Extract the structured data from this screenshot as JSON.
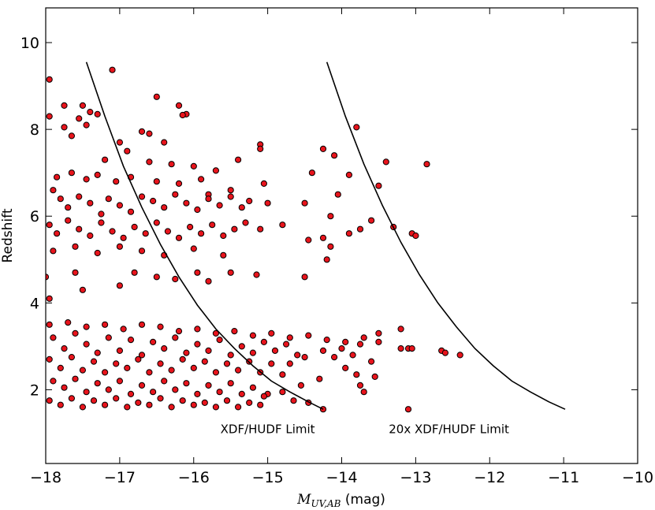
{
  "chart_data": {
    "type": "scatter",
    "xlabel_main": "M",
    "xlabel_sub": "UV,AB",
    "xlabel_unit": " (mag)",
    "ylabel": "Redshift",
    "xlim": [
      -18,
      -10
    ],
    "ylim": [
      0.3,
      10.8
    ],
    "xticks": [
      -18,
      -17,
      -16,
      -15,
      -14,
      -13,
      -12,
      -11,
      -10
    ],
    "xtick_labels": [
      "−18",
      "−17",
      "−16",
      "−15",
      "−14",
      "−13",
      "−12",
      "−11",
      "−10"
    ],
    "yticks": [
      2,
      4,
      6,
      8,
      10
    ],
    "ytick_labels": [
      "2",
      "4",
      "6",
      "8",
      "10"
    ],
    "grid": false,
    "marker_color": "#e8141c",
    "marker_edge": "#000000",
    "curves": [
      {
        "label": "XDF/HUDF Limit",
        "label_pos": [
          -15.0,
          1.0
        ],
        "points": [
          [
            -17.45,
            9.55
          ],
          [
            -17.2,
            8.3
          ],
          [
            -16.95,
            7.15
          ],
          [
            -16.7,
            6.2
          ],
          [
            -16.45,
            5.35
          ],
          [
            -16.2,
            4.6
          ],
          [
            -15.95,
            3.95
          ],
          [
            -15.7,
            3.4
          ],
          [
            -15.45,
            2.95
          ],
          [
            -15.2,
            2.55
          ],
          [
            -14.95,
            2.2
          ],
          [
            -14.7,
            1.95
          ],
          [
            -14.45,
            1.72
          ],
          [
            -14.25,
            1.55
          ]
        ]
      },
      {
        "label": "20x XDF/HUDF Limit",
        "label_pos": [
          -12.55,
          1.0
        ],
        "points": [
          [
            -14.2,
            9.55
          ],
          [
            -13.95,
            8.3
          ],
          [
            -13.7,
            7.2
          ],
          [
            -13.45,
            6.25
          ],
          [
            -13.2,
            5.4
          ],
          [
            -12.95,
            4.65
          ],
          [
            -12.7,
            4.0
          ],
          [
            -12.45,
            3.45
          ],
          [
            -12.2,
            2.95
          ],
          [
            -11.95,
            2.55
          ],
          [
            -11.7,
            2.2
          ],
          [
            -11.45,
            1.95
          ],
          [
            -11.2,
            1.72
          ],
          [
            -10.98,
            1.55
          ]
        ]
      }
    ],
    "points": [
      [
        -17.95,
        9.15
      ],
      [
        -17.1,
        9.37
      ],
      [
        -16.5,
        8.75
      ],
      [
        -16.2,
        8.55
      ],
      [
        -16.1,
        8.35
      ],
      [
        -16.15,
        8.33
      ],
      [
        -17.95,
        8.3
      ],
      [
        -17.75,
        8.55
      ],
      [
        -17.5,
        8.55
      ],
      [
        -17.4,
        8.4
      ],
      [
        -17.3,
        8.35
      ],
      [
        -17.55,
        8.25
      ],
      [
        -17.75,
        8.05
      ],
      [
        -17.65,
        7.85
      ],
      [
        -17.45,
        8.1
      ],
      [
        -17.0,
        7.7
      ],
      [
        -16.7,
        7.95
      ],
      [
        -16.6,
        7.9
      ],
      [
        -16.4,
        7.7
      ],
      [
        -15.1,
        7.65
      ],
      [
        -15.1,
        7.55
      ],
      [
        -14.25,
        7.55
      ],
      [
        -14.1,
        7.4
      ],
      [
        -13.8,
        8.05
      ],
      [
        -13.4,
        7.25
      ],
      [
        -12.85,
        7.2
      ],
      [
        -17.2,
        7.3
      ],
      [
        -16.9,
        7.5
      ],
      [
        -16.6,
        7.25
      ],
      [
        -16.3,
        7.2
      ],
      [
        -16.0,
        7.15
      ],
      [
        -15.7,
        7.05
      ],
      [
        -15.4,
        7.3
      ],
      [
        -14.4,
        7.0
      ],
      [
        -13.9,
        6.95
      ],
      [
        -13.5,
        6.7
      ],
      [
        -14.05,
        6.5
      ],
      [
        -14.5,
        6.3
      ],
      [
        -15.0,
        6.3
      ],
      [
        -15.05,
        6.75
      ],
      [
        -15.5,
        6.6
      ],
      [
        -15.8,
        6.5
      ],
      [
        -14.15,
        6.0
      ],
      [
        -13.6,
        5.9
      ],
      [
        -13.3,
        5.75
      ],
      [
        -13.75,
        5.7
      ],
      [
        -13.9,
        5.6
      ],
      [
        -13.05,
        5.6
      ],
      [
        -13.0,
        5.55
      ],
      [
        -14.25,
        5.5
      ],
      [
        -14.45,
        5.45
      ],
      [
        -15.1,
        5.7
      ],
      [
        -14.8,
        5.8
      ],
      [
        -14.2,
        5.0
      ],
      [
        -14.15,
        5.3
      ],
      [
        -15.15,
        4.65
      ],
      [
        -14.5,
        4.6
      ],
      [
        -15.5,
        4.7
      ],
      [
        -15.8,
        4.5
      ],
      [
        -15.95,
        4.7
      ],
      [
        -16.25,
        4.55
      ],
      [
        -16.5,
        4.6
      ],
      [
        -17.0,
        4.4
      ],
      [
        -17.5,
        4.3
      ],
      [
        -17.95,
        4.1
      ],
      [
        -18.0,
        4.6
      ],
      [
        -17.6,
        4.7
      ],
      [
        -16.8,
        4.7
      ],
      [
        -17.9,
        6.6
      ],
      [
        -17.8,
        6.4
      ],
      [
        -17.7,
        6.2
      ],
      [
        -17.55,
        6.45
      ],
      [
        -17.4,
        6.3
      ],
      [
        -17.25,
        6.05
      ],
      [
        -17.15,
        6.4
      ],
      [
        -17.0,
        6.25
      ],
      [
        -16.85,
        6.1
      ],
      [
        -16.7,
        6.45
      ],
      [
        -16.55,
        6.35
      ],
      [
        -16.4,
        6.2
      ],
      [
        -16.25,
        6.5
      ],
      [
        -16.1,
        6.3
      ],
      [
        -15.95,
        6.15
      ],
      [
        -15.8,
        6.4
      ],
      [
        -15.65,
        6.25
      ],
      [
        -15.5,
        6.45
      ],
      [
        -15.35,
        6.2
      ],
      [
        -15.25,
        6.35
      ],
      [
        -17.95,
        5.8
      ],
      [
        -17.85,
        5.6
      ],
      [
        -17.7,
        5.9
      ],
      [
        -17.55,
        5.7
      ],
      [
        -17.4,
        5.55
      ],
      [
        -17.25,
        5.85
      ],
      [
        -17.1,
        5.65
      ],
      [
        -16.95,
        5.5
      ],
      [
        -16.8,
        5.75
      ],
      [
        -16.65,
        5.6
      ],
      [
        -16.5,
        5.85
      ],
      [
        -16.35,
        5.65
      ],
      [
        -16.2,
        5.5
      ],
      [
        -16.05,
        5.75
      ],
      [
        -15.9,
        5.6
      ],
      [
        -15.75,
        5.8
      ],
      [
        -15.6,
        5.55
      ],
      [
        -15.45,
        5.7
      ],
      [
        -15.3,
        5.85
      ],
      [
        -17.85,
        6.9
      ],
      [
        -17.65,
        7.0
      ],
      [
        -17.45,
        6.85
      ],
      [
        -17.3,
        6.95
      ],
      [
        -17.05,
        6.8
      ],
      [
        -16.85,
        6.9
      ],
      [
        -16.5,
        6.8
      ],
      [
        -16.2,
        6.75
      ],
      [
        -15.9,
        6.85
      ],
      [
        -17.9,
        5.2
      ],
      [
        -17.6,
        5.3
      ],
      [
        -17.3,
        5.15
      ],
      [
        -17.0,
        5.3
      ],
      [
        -16.7,
        5.2
      ],
      [
        -16.4,
        5.1
      ],
      [
        -16.0,
        5.25
      ],
      [
        -15.6,
        5.1
      ],
      [
        -17.95,
        3.5
      ],
      [
        -17.7,
        3.55
      ],
      [
        -17.45,
        3.45
      ],
      [
        -17.2,
        3.5
      ],
      [
        -16.95,
        3.4
      ],
      [
        -16.7,
        3.5
      ],
      [
        -16.45,
        3.45
      ],
      [
        -16.2,
        3.35
      ],
      [
        -15.95,
        3.4
      ],
      [
        -15.7,
        3.3
      ],
      [
        -15.45,
        3.35
      ],
      [
        -15.2,
        3.25
      ],
      [
        -14.95,
        3.3
      ],
      [
        -14.7,
        3.2
      ],
      [
        -14.45,
        3.25
      ],
      [
        -14.2,
        3.15
      ],
      [
        -13.95,
        3.1
      ],
      [
        -13.7,
        3.2
      ],
      [
        -13.5,
        3.3
      ],
      [
        -13.2,
        3.4
      ],
      [
        -13.2,
        2.95
      ],
      [
        -13.1,
        2.95
      ],
      [
        -13.05,
        2.95
      ],
      [
        -12.65,
        2.9
      ],
      [
        -12.6,
        2.85
      ],
      [
        -12.4,
        2.8
      ],
      [
        -13.1,
        1.55
      ],
      [
        -14.25,
        1.55
      ],
      [
        -14.45,
        1.7
      ],
      [
        -14.65,
        1.75
      ],
      [
        -13.75,
        2.1
      ],
      [
        -13.55,
        2.3
      ],
      [
        -13.7,
        1.95
      ],
      [
        -13.8,
        2.35
      ],
      [
        -13.95,
        2.5
      ],
      [
        -14.1,
        2.75
      ],
      [
        -13.85,
        2.8
      ],
      [
        -13.6,
        2.65
      ],
      [
        -13.5,
        3.1
      ],
      [
        -13.75,
        3.05
      ],
      [
        -14.0,
        2.95
      ],
      [
        -14.25,
        2.9
      ],
      [
        -14.5,
        2.75
      ],
      [
        -14.7,
        2.6
      ],
      [
        -14.3,
        2.25
      ],
      [
        -14.55,
        2.1
      ],
      [
        -14.8,
        1.95
      ],
      [
        -15.0,
        1.9
      ],
      [
        -17.9,
        3.2
      ],
      [
        -17.75,
        2.95
      ],
      [
        -17.6,
        3.3
      ],
      [
        -17.45,
        3.05
      ],
      [
        -17.3,
        2.85
      ],
      [
        -17.15,
        3.2
      ],
      [
        -17.0,
        2.9
      ],
      [
        -16.85,
        3.15
      ],
      [
        -16.7,
        2.8
      ],
      [
        -16.55,
        3.1
      ],
      [
        -16.4,
        2.95
      ],
      [
        -16.25,
        3.2
      ],
      [
        -16.1,
        2.85
      ],
      [
        -15.95,
        3.05
      ],
      [
        -15.8,
        2.9
      ],
      [
        -15.65,
        3.15
      ],
      [
        -15.5,
        2.8
      ],
      [
        -15.35,
        3.0
      ],
      [
        -15.2,
        2.85
      ],
      [
        -15.05,
        3.1
      ],
      [
        -14.9,
        2.9
      ],
      [
        -14.75,
        3.05
      ],
      [
        -14.6,
        2.8
      ],
      [
        -17.95,
        2.7
      ],
      [
        -17.8,
        2.5
      ],
      [
        -17.65,
        2.75
      ],
      [
        -17.5,
        2.45
      ],
      [
        -17.35,
        2.65
      ],
      [
        -17.2,
        2.4
      ],
      [
        -17.05,
        2.6
      ],
      [
        -16.9,
        2.5
      ],
      [
        -16.75,
        2.7
      ],
      [
        -16.6,
        2.4
      ],
      [
        -16.45,
        2.6
      ],
      [
        -16.3,
        2.45
      ],
      [
        -16.15,
        2.7
      ],
      [
        -16.0,
        2.5
      ],
      [
        -15.85,
        2.65
      ],
      [
        -15.7,
        2.4
      ],
      [
        -15.55,
        2.6
      ],
      [
        -15.4,
        2.45
      ],
      [
        -15.25,
        2.65
      ],
      [
        -15.1,
        2.4
      ],
      [
        -14.95,
        2.6
      ],
      [
        -14.8,
        2.35
      ],
      [
        -17.9,
        2.2
      ],
      [
        -17.75,
        2.05
      ],
      [
        -17.6,
        2.25
      ],
      [
        -17.45,
        1.95
      ],
      [
        -17.3,
        2.15
      ],
      [
        -17.15,
        2.0
      ],
      [
        -17.0,
        2.2
      ],
      [
        -16.85,
        1.9
      ],
      [
        -16.7,
        2.1
      ],
      [
        -16.55,
        1.95
      ],
      [
        -16.4,
        2.2
      ],
      [
        -16.25,
        2.0
      ],
      [
        -16.1,
        2.15
      ],
      [
        -15.95,
        1.9
      ],
      [
        -15.8,
        2.1
      ],
      [
        -15.65,
        1.95
      ],
      [
        -15.5,
        2.15
      ],
      [
        -15.35,
        1.9
      ],
      [
        -15.2,
        2.05
      ],
      [
        -15.05,
        1.85
      ],
      [
        -17.95,
        1.75
      ],
      [
        -17.8,
        1.65
      ],
      [
        -17.65,
        1.8
      ],
      [
        -17.5,
        1.6
      ],
      [
        -17.35,
        1.75
      ],
      [
        -17.2,
        1.65
      ],
      [
        -17.05,
        1.8
      ],
      [
        -16.9,
        1.6
      ],
      [
        -16.75,
        1.7
      ],
      [
        -16.6,
        1.65
      ],
      [
        -16.45,
        1.8
      ],
      [
        -16.3,
        1.6
      ],
      [
        -16.15,
        1.75
      ],
      [
        -16.0,
        1.65
      ],
      [
        -15.85,
        1.7
      ],
      [
        -15.7,
        1.6
      ],
      [
        -15.55,
        1.75
      ],
      [
        -15.4,
        1.6
      ],
      [
        -15.25,
        1.7
      ],
      [
        -15.1,
        1.65
      ]
    ]
  }
}
